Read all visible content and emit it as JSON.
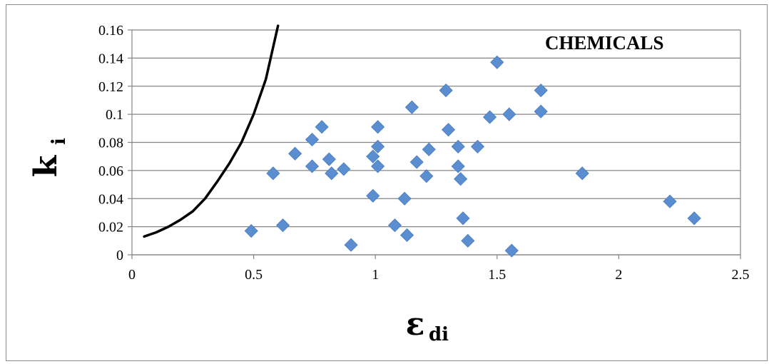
{
  "chart_data": {
    "type": "scatter",
    "title": "",
    "annotation": "CHEMICALS",
    "xlabel": "ε",
    "xlabel_sub": "di",
    "ylabel": "k",
    "ylabel_sub": "i",
    "xlim": [
      0,
      2.5
    ],
    "ylim": [
      0,
      0.16
    ],
    "x_ticks": [
      "0",
      "0.5",
      "1",
      "1.5",
      "2",
      "2.5"
    ],
    "y_ticks": [
      "0",
      "0.02",
      "0.04",
      "0.06",
      "0.08",
      "0.1",
      "0.12",
      "0.14",
      "0.16"
    ],
    "grid": "horizontal",
    "marker_color": "#5b8ed1",
    "marker_shape": "diamond",
    "points": [
      [
        0.49,
        0.017
      ],
      [
        0.58,
        0.058
      ],
      [
        0.62,
        0.021
      ],
      [
        0.67,
        0.072
      ],
      [
        0.74,
        0.063
      ],
      [
        0.74,
        0.082
      ],
      [
        0.78,
        0.091
      ],
      [
        0.81,
        0.068
      ],
      [
        0.82,
        0.058
      ],
      [
        0.87,
        0.061
      ],
      [
        0.9,
        0.007
      ],
      [
        0.99,
        0.042
      ],
      [
        0.99,
        0.07
      ],
      [
        1.01,
        0.077
      ],
      [
        1.01,
        0.091
      ],
      [
        1.01,
        0.063
      ],
      [
        1.08,
        0.021
      ],
      [
        1.12,
        0.04
      ],
      [
        1.13,
        0.014
      ],
      [
        1.15,
        0.105
      ],
      [
        1.17,
        0.066
      ],
      [
        1.21,
        0.056
      ],
      [
        1.22,
        0.075
      ],
      [
        1.29,
        0.117
      ],
      [
        1.3,
        0.089
      ],
      [
        1.34,
        0.077
      ],
      [
        1.34,
        0.063
      ],
      [
        1.35,
        0.054
      ],
      [
        1.36,
        0.026
      ],
      [
        1.38,
        0.01
      ],
      [
        1.42,
        0.077
      ],
      [
        1.47,
        0.098
      ],
      [
        1.5,
        0.137
      ],
      [
        1.55,
        0.1
      ],
      [
        1.56,
        0.003
      ],
      [
        1.68,
        0.117
      ],
      [
        1.68,
        0.102
      ],
      [
        1.85,
        0.058
      ],
      [
        2.21,
        0.038
      ],
      [
        2.31,
        0.026
      ]
    ],
    "curve_color": "#000000",
    "curve": [
      [
        0.05,
        0.013
      ],
      [
        0.1,
        0.016
      ],
      [
        0.15,
        0.02
      ],
      [
        0.2,
        0.025
      ],
      [
        0.25,
        0.031
      ],
      [
        0.3,
        0.04
      ],
      [
        0.35,
        0.052
      ],
      [
        0.4,
        0.065
      ],
      [
        0.45,
        0.08
      ],
      [
        0.5,
        0.1
      ],
      [
        0.55,
        0.125
      ],
      [
        0.6,
        0.163
      ]
    ]
  }
}
